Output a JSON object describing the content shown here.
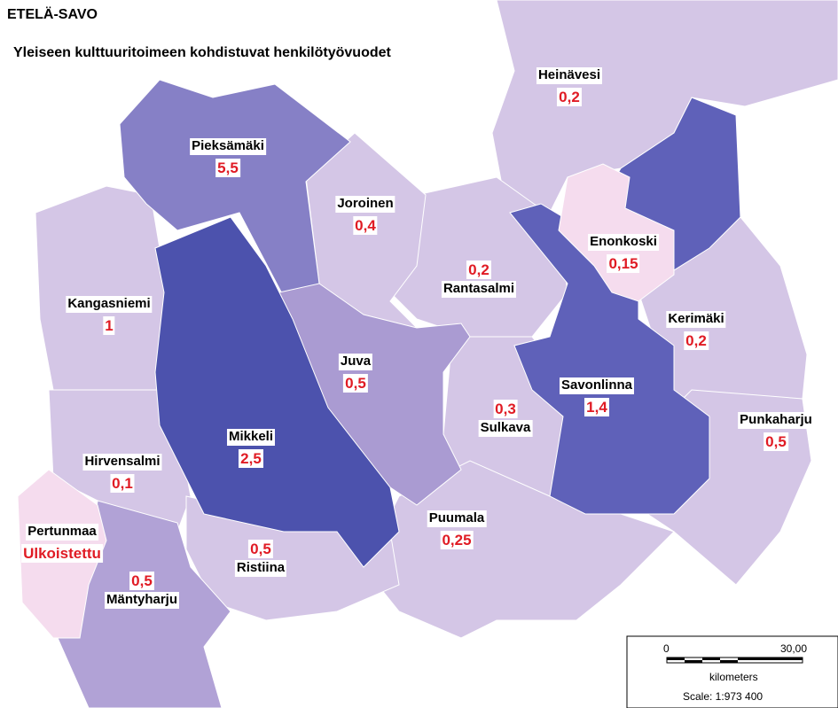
{
  "header": {
    "title": "ETELÄ-SAVO",
    "subtitle": "Yleiseen kulttuuritoimeen kohdistuvat henkilötyövuodet"
  },
  "regions": [
    {
      "name": "Heinävesi",
      "value": "0,2"
    },
    {
      "name": "Pieksämäki",
      "value": "5,5"
    },
    {
      "name": "Joroinen",
      "value": "0,4"
    },
    {
      "name": "Rantasalmi",
      "value": "0,2"
    },
    {
      "name": "Enonkoski",
      "value": "0,15"
    },
    {
      "name": "Kerimäki",
      "value": "0,2"
    },
    {
      "name": "Kangasniemi",
      "value": "1"
    },
    {
      "name": "Juva",
      "value": "0,5"
    },
    {
      "name": "Savonlinna",
      "value": "1,4"
    },
    {
      "name": "Sulkava",
      "value": "0,3"
    },
    {
      "name": "Punkaharju",
      "value": "0,5"
    },
    {
      "name": "Mikkeli",
      "value": "2,5"
    },
    {
      "name": "Hirvensalmi",
      "value": "0,1"
    },
    {
      "name": "Pertunmaa",
      "value": "Ulkoistettu"
    },
    {
      "name": "Puumala",
      "value": "0,25"
    },
    {
      "name": "Ristiina",
      "value": "0,5"
    },
    {
      "name": "Mäntyharju",
      "value": "0,5"
    }
  ],
  "scale": {
    "start": "0",
    "end": "30,00",
    "unit": "kilometers",
    "ratio": "Scale: 1:973 400"
  }
}
